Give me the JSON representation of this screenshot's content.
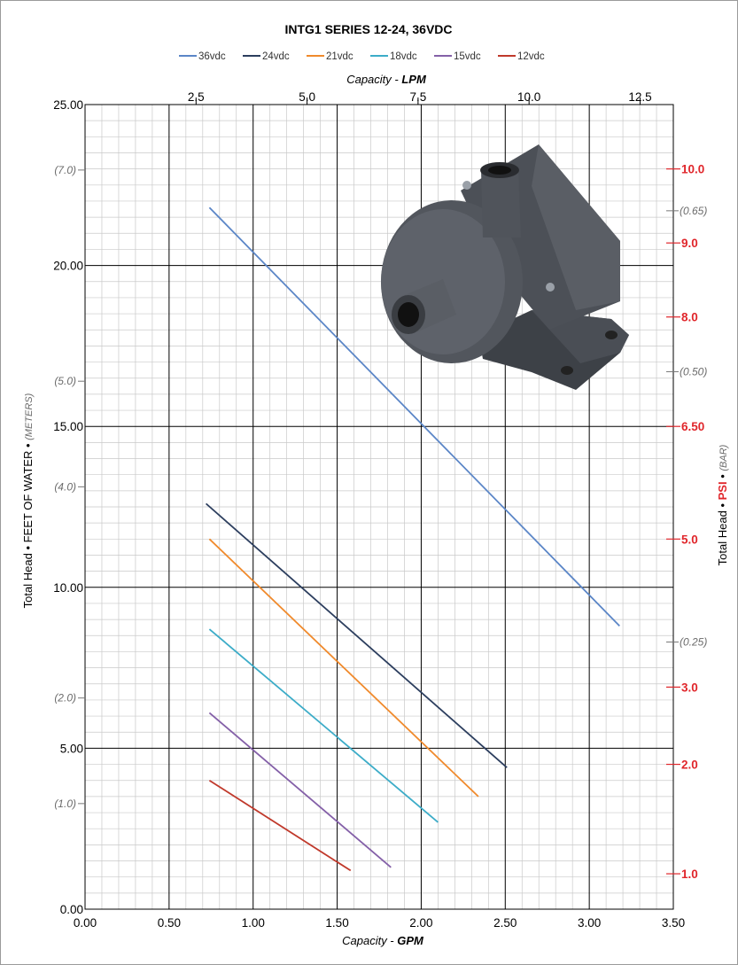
{
  "chart_data": {
    "type": "line",
    "title": "INTG1 SERIES 12-24, 36VDC",
    "xlabel": {
      "prefix": "Capacity - ",
      "unit": "GPM"
    },
    "x2label": {
      "prefix": "Capacity - ",
      "unit": "LPM"
    },
    "ylabel": {
      "main": "Total Head • FEET OF WATER • ",
      "unit": "(METERS)"
    },
    "y2label": {
      "prefix": "Total Head  • ",
      "psi": "PSI",
      "sep": " • ",
      "unit": "(BAR)"
    },
    "xlim": [
      0,
      3.5
    ],
    "ylim": [
      0,
      25
    ],
    "grid": true,
    "legend_position": "top",
    "x_ticks": [
      "0.00",
      "0.50",
      "1.00",
      "1.50",
      "2.00",
      "2.50",
      "3.00",
      "3.50"
    ],
    "x_tick_values": [
      0,
      0.5,
      1.0,
      1.5,
      2.0,
      2.5,
      3.0,
      3.5
    ],
    "y_ticks": [
      "0.00",
      "5.00",
      "10.00",
      "15.00",
      "20.00",
      "25.00"
    ],
    "y_tick_values": [
      0,
      5,
      10,
      15,
      20,
      25
    ],
    "lpm_ticks": [
      "2.5",
      "5.0",
      "7.5",
      "10.0",
      "12.5"
    ],
    "lpm_tick_values": [
      2.5,
      5.0,
      7.5,
      10.0,
      12.5
    ],
    "meter_ticks": [
      "(1.0)",
      "(2.0)",
      "(4.0)",
      "(5.0)",
      "(7.0)"
    ],
    "meter_tick_values": [
      1.0,
      2.0,
      4.0,
      5.0,
      7.0
    ],
    "psi_ticks": [
      "1.0",
      "2.0",
      "3.0",
      "5.0",
      "6.50",
      "8.0",
      "9.0",
      "10.0"
    ],
    "psi_tick_feet": [
      1.1,
      4.5,
      6.9,
      11.5,
      15.0,
      18.4,
      20.7,
      23.0
    ],
    "bar_ticks": [
      "(0.25)",
      "(0.50)",
      "(0.65)"
    ],
    "bar_tick_feet": [
      8.3,
      16.7,
      21.7
    ],
    "series": [
      {
        "name": "36vdc",
        "color": "#5b86c7",
        "x": [
          0.74,
          3.18
        ],
        "y": [
          21.8,
          8.8
        ]
      },
      {
        "name": "24vdc",
        "color": "#2c3e5e",
        "x": [
          0.72,
          2.51
        ],
        "y": [
          12.6,
          4.4
        ]
      },
      {
        "name": "21vdc",
        "color": "#f08a2c",
        "x": [
          0.74,
          2.34
        ],
        "y": [
          11.5,
          3.5
        ]
      },
      {
        "name": "18vdc",
        "color": "#3cacc8",
        "x": [
          0.74,
          2.1
        ],
        "y": [
          8.7,
          2.7
        ]
      },
      {
        "name": "15vdc",
        "color": "#8460a8",
        "x": [
          0.74,
          1.82
        ],
        "y": [
          6.1,
          1.3
        ]
      },
      {
        "name": "12vdc",
        "color": "#c0392b",
        "x": [
          0.74,
          1.58
        ],
        "y": [
          4.0,
          1.2
        ]
      }
    ]
  }
}
